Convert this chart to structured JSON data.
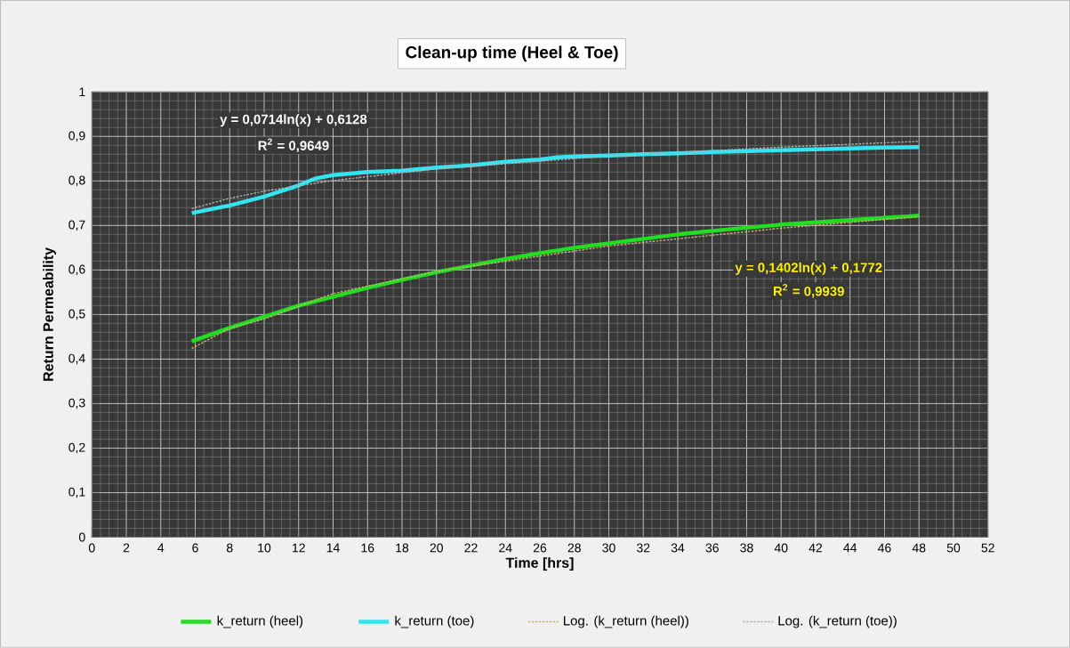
{
  "chart_data": {
    "type": "line",
    "title": "Clean-up time (Heel & Toe)",
    "xlabel": "Time [hrs]",
    "ylabel": "Return Permeability",
    "xlim": [
      0,
      52
    ],
    "xticks": [
      0,
      2,
      4,
      6,
      8,
      10,
      12,
      14,
      16,
      18,
      20,
      22,
      24,
      26,
      28,
      30,
      32,
      34,
      36,
      38,
      40,
      42,
      44,
      46,
      48,
      50,
      52
    ],
    "ylim": [
      0,
      1
    ],
    "yticks": [
      0,
      {
        "value": 0.1,
        "label": "0,1"
      },
      {
        "value": 0.2,
        "label": "0,2"
      },
      {
        "value": 0.3,
        "label": "0,3"
      },
      {
        "value": 0.4,
        "label": "0,4"
      },
      {
        "value": 0.5,
        "label": "0,5"
      },
      {
        "value": 0.6,
        "label": "0,6"
      },
      {
        "value": 0.7,
        "label": "0,7"
      },
      {
        "value": 0.8,
        "label": "0,8"
      },
      {
        "value": 0.9,
        "label": "0,9"
      },
      1
    ],
    "grid": true,
    "legend": "bottom",
    "series": [
      {
        "name": "k_return (heel)",
        "color": "#22dd22",
        "line_style": "solid",
        "x": [
          5.8,
          8,
          10,
          12,
          14,
          16,
          18,
          20,
          22,
          24,
          26,
          28,
          30,
          32,
          34,
          36,
          38,
          40,
          42,
          44,
          46,
          48
        ],
        "values": [
          0.44,
          0.47,
          0.495,
          0.52,
          0.54,
          0.56,
          0.578,
          0.595,
          0.61,
          0.625,
          0.638,
          0.65,
          0.66,
          0.67,
          0.68,
          0.688,
          0.695,
          0.702,
          0.707,
          0.712,
          0.717,
          0.722
        ]
      },
      {
        "name": "k_return (toe)",
        "color": "#33e5f0",
        "line_style": "solid",
        "x": [
          5.8,
          8,
          10,
          12,
          13,
          14,
          16,
          18,
          20,
          22,
          24,
          26,
          27,
          28,
          30,
          32,
          34,
          36,
          38,
          40,
          42,
          44,
          46,
          48
        ],
        "values": [
          0.728,
          0.745,
          0.765,
          0.79,
          0.806,
          0.813,
          0.82,
          0.823,
          0.83,
          0.835,
          0.843,
          0.848,
          0.853,
          0.855,
          0.857,
          0.86,
          0.862,
          0.865,
          0.867,
          0.869,
          0.871,
          0.873,
          0.875,
          0.876
        ]
      },
      {
        "name": "Log. (k_return (heel))",
        "color": "#c8b46e",
        "line_style": "dotted",
        "x": [
          5.8,
          8,
          10,
          14,
          20,
          30,
          40,
          48
        ],
        "values": [
          0.424,
          0.469,
          0.49,
          0.547,
          0.597,
          0.654,
          0.694,
          0.72
        ]
      },
      {
        "name": "Log. (k_return (toe))",
        "color": "#b0b0b0",
        "line_style": "dotted",
        "x": [
          5.8,
          8,
          10,
          14,
          20,
          30,
          40,
          48
        ],
        "values": [
          0.738,
          0.761,
          0.777,
          0.801,
          0.827,
          0.856,
          0.876,
          0.889
        ]
      }
    ],
    "annotations": [
      "y = 0,0714ln(x) + 0,6128",
      "R$^{2}$ = 0,9649",
      "y = 0,1402ln(x) + 0,1772",
      "R$^{2}$ = 0,9939"
    ]
  }
}
